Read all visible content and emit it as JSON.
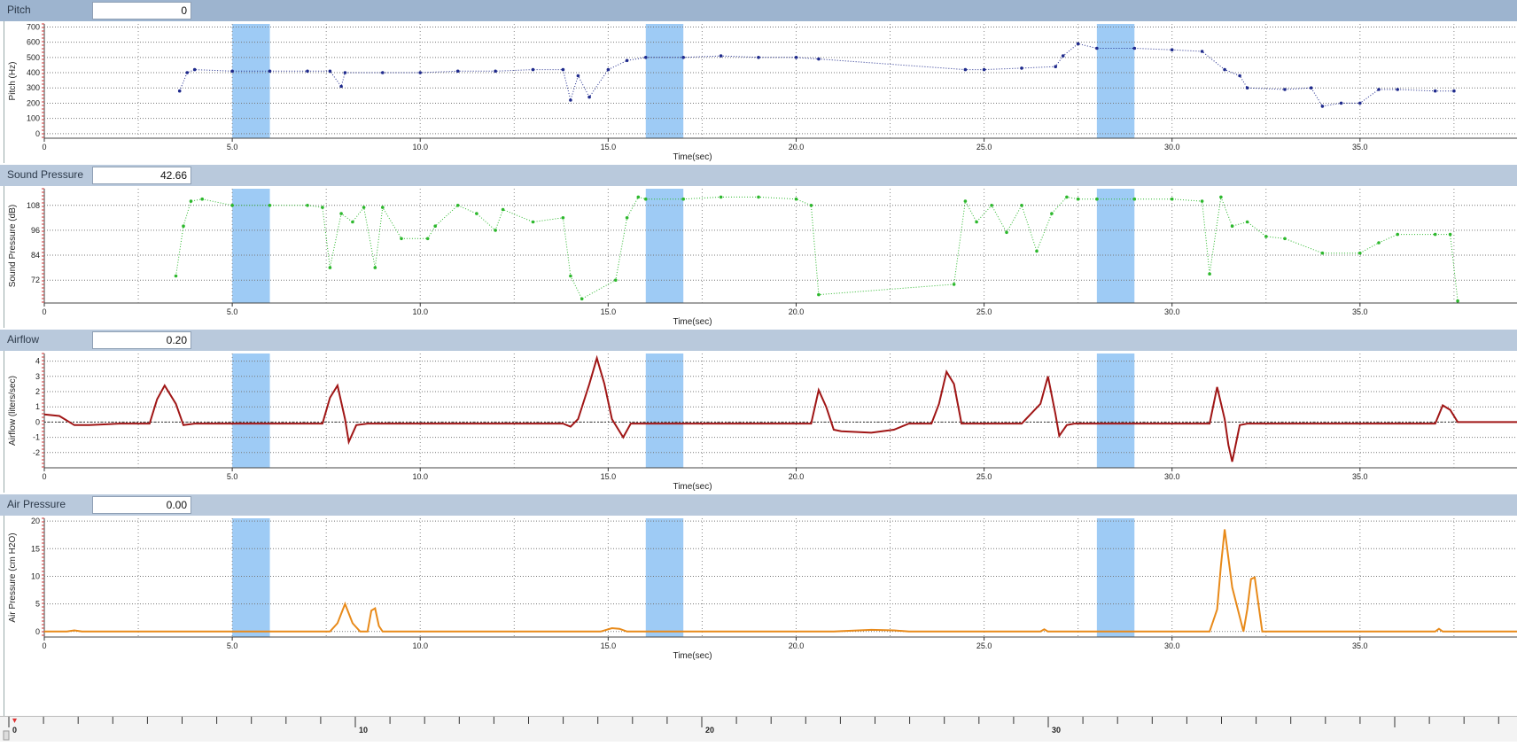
{
  "panels": [
    {
      "title": "Pitch",
      "value": "0"
    },
    {
      "title": "Sound Pressure",
      "value": "42.66"
    },
    {
      "title": "Airflow",
      "value": "0.20"
    },
    {
      "title": "Air Pressure",
      "value": "0.00"
    }
  ],
  "ruler": {
    "labels": [
      "0",
      "10",
      "20",
      "30"
    ]
  },
  "chart_data": [
    {
      "type": "scatter",
      "title": "Pitch",
      "xlabel": "Time(sec)",
      "ylabel": "Pitch (Hz)",
      "xlim": [
        0,
        39.2
      ],
      "ylim": [
        -30,
        720
      ],
      "xticks": [
        "0",
        "5.0",
        "10.0",
        "15.0",
        "20.0",
        "25.0",
        "30.0",
        "35.0"
      ],
      "yticks": [
        "0",
        "100",
        "200",
        "300",
        "400",
        "500",
        "600",
        "700"
      ],
      "highlight_bands": [
        [
          5.0,
          6.0
        ],
        [
          16.0,
          17.0
        ],
        [
          28.0,
          29.0
        ]
      ],
      "color": "#1f2a8c",
      "series": [
        {
          "x": [
            3.6,
            3.8,
            4.0,
            5.0,
            6.0,
            7.0,
            7.6,
            7.9,
            8.0,
            9.0,
            10.0,
            11.0,
            12.0,
            13.0,
            13.8,
            14.0,
            14.2,
            14.5,
            15.0,
            15.5,
            16.0,
            17.0,
            18.0,
            19.0,
            20.0,
            20.6,
            24.5,
            25.0,
            26.0,
            26.9,
            27.1,
            27.5,
            28.0,
            29.0,
            30.0,
            30.8,
            31.4,
            31.8,
            32.0,
            33.0,
            33.7,
            34.0,
            34.5,
            35.0,
            35.5,
            36.0,
            37.0,
            37.5
          ],
          "y": [
            280,
            400,
            420,
            410,
            410,
            410,
            410,
            310,
            400,
            400,
            400,
            410,
            410,
            420,
            420,
            220,
            380,
            240,
            420,
            480,
            500,
            500,
            510,
            500,
            500,
            490,
            420,
            420,
            430,
            440,
            510,
            590,
            560,
            560,
            550,
            540,
            420,
            380,
            300,
            290,
            300,
            180,
            200,
            200,
            290,
            290,
            280,
            280
          ]
        }
      ]
    },
    {
      "type": "scatter",
      "title": "Sound Pressure",
      "xlabel": "Time(sec)",
      "ylabel": "Sound Pressure (dB)",
      "xlim": [
        0,
        39.2
      ],
      "ylim": [
        61,
        116
      ],
      "xticks": [
        "0",
        "5.0",
        "10.0",
        "15.0",
        "20.0",
        "25.0",
        "30.0",
        "35.0"
      ],
      "yticks": [
        "72",
        "84",
        "96",
        "108"
      ],
      "highlight_bands": [
        [
          5.0,
          6.0
        ],
        [
          16.0,
          17.0
        ],
        [
          28.0,
          29.0
        ]
      ],
      "color": "#2db82d",
      "series": [
        {
          "x": [
            3.5,
            3.7,
            3.9,
            4.2,
            5.0,
            6.0,
            7.0,
            7.4,
            7.6,
            7.9,
            8.2,
            8.5,
            8.8,
            9.0,
            9.5,
            10.2,
            10.4,
            11.0,
            11.5,
            12.0,
            12.2,
            13.0,
            13.8,
            14.0,
            14.3,
            15.2,
            15.5,
            15.8,
            16.0,
            17.0,
            18.0,
            19.0,
            20.0,
            20.4,
            20.6,
            24.2,
            24.5,
            24.8,
            25.2,
            25.6,
            26.0,
            26.4,
            26.8,
            27.2,
            27.5,
            28.0,
            29.0,
            30.0,
            30.8,
            31.0,
            31.3,
            31.6,
            32.0,
            32.5,
            33.0,
            34.0,
            35.0,
            35.5,
            36.0,
            37.0,
            37.4,
            37.6
          ],
          "y": [
            74,
            98,
            110,
            111,
            108,
            108,
            108,
            107,
            78,
            104,
            100,
            107,
            78,
            107,
            92,
            92,
            98,
            108,
            104,
            96,
            106,
            100,
            102,
            74,
            63,
            72,
            102,
            112,
            111,
            111,
            112,
            112,
            111,
            108,
            65,
            70,
            110,
            100,
            108,
            95,
            108,
            86,
            104,
            112,
            111,
            111,
            111,
            111,
            110,
            75,
            112,
            98,
            100,
            93,
            92,
            85,
            85,
            90,
            94,
            94,
            94,
            62
          ]
        }
      ]
    },
    {
      "type": "line",
      "title": "Airflow",
      "xlabel": "Time(sec)",
      "ylabel": "Airflow (liters/sec)",
      "xlim": [
        0,
        39.2
      ],
      "ylim": [
        -3,
        4.5
      ],
      "xticks": [
        "0",
        "5.0",
        "10.0",
        "15.0",
        "20.0",
        "25.0",
        "30.0",
        "35.0"
      ],
      "yticks": [
        "-2",
        "-1",
        "0",
        "1",
        "2",
        "3",
        "4"
      ],
      "highlight_bands": [
        [
          5.0,
          6.0
        ],
        [
          16.0,
          17.0
        ],
        [
          28.0,
          29.0
        ]
      ],
      "color": "#a01616",
      "series": [
        {
          "x": [
            0,
            0.4,
            0.8,
            1.2,
            2.0,
            2.8,
            3.0,
            3.2,
            3.5,
            3.7,
            4.0,
            6.0,
            7.4,
            7.6,
            7.8,
            8.0,
            8.1,
            8.3,
            8.6,
            10.0,
            12.0,
            13.8,
            14.0,
            14.2,
            14.5,
            14.7,
            14.9,
            15.1,
            15.4,
            15.6,
            16.0,
            18.0,
            20.0,
            20.4,
            20.6,
            20.8,
            21.0,
            21.2,
            22.0,
            22.6,
            23.0,
            23.6,
            23.8,
            24.0,
            24.2,
            24.4,
            25.0,
            26.0,
            26.5,
            26.7,
            26.9,
            27.0,
            27.2,
            27.4,
            28.0,
            30.0,
            31.0,
            31.2,
            31.4,
            31.5,
            31.6,
            31.8,
            32.0,
            34.0,
            37.0,
            37.2,
            37.4,
            37.6,
            39.2
          ],
          "y": [
            0.5,
            0.4,
            -0.2,
            -0.2,
            -0.1,
            -0.1,
            1.5,
            2.4,
            1.2,
            -0.2,
            -0.1,
            -0.1,
            -0.1,
            1.6,
            2.4,
            0.2,
            -1.3,
            -0.2,
            -0.1,
            -0.1,
            -0.1,
            -0.1,
            -0.3,
            0.2,
            2.5,
            4.2,
            2.5,
            0.2,
            -1.0,
            -0.1,
            -0.1,
            -0.1,
            -0.1,
            -0.1,
            2.1,
            1.0,
            -0.5,
            -0.6,
            -0.7,
            -0.5,
            -0.1,
            -0.1,
            1.2,
            3.3,
            2.5,
            -0.1,
            -0.1,
            -0.1,
            1.2,
            3.0,
            0.5,
            -0.9,
            -0.2,
            -0.1,
            -0.1,
            -0.1,
            -0.1,
            2.3,
            0.2,
            -1.5,
            -2.6,
            -0.2,
            -0.1,
            -0.1,
            -0.1,
            1.1,
            0.8,
            0.0,
            0.0
          ]
        }
      ]
    },
    {
      "type": "line",
      "title": "Air Pressure",
      "xlabel": "Time(sec)",
      "ylabel": "Air Pressure (cm H2O)",
      "xlim": [
        0,
        39.2
      ],
      "ylim": [
        -1,
        20.5
      ],
      "xticks": [
        "0",
        "5.0",
        "10.0",
        "15.0",
        "20.0",
        "25.0",
        "30.0",
        "35.0"
      ],
      "yticks": [
        "0",
        "5",
        "10",
        "15",
        "20"
      ],
      "highlight_bands": [
        [
          5.0,
          6.0
        ],
        [
          16.0,
          17.0
        ],
        [
          28.0,
          29.0
        ]
      ],
      "color": "#e88a1a",
      "series": [
        {
          "x": [
            0,
            0.6,
            0.8,
            1.0,
            7.6,
            7.8,
            8.0,
            8.2,
            8.4,
            8.6,
            8.7,
            8.8,
            8.9,
            9.0,
            14.8,
            15.1,
            15.3,
            15.5,
            21.0,
            22.0,
            22.6,
            23.0,
            26.5,
            26.6,
            26.7,
            31.0,
            31.2,
            31.3,
            31.4,
            31.6,
            31.9,
            32.0,
            32.1,
            32.2,
            32.4,
            37.0,
            37.1,
            37.2,
            39.2
          ],
          "y": [
            0,
            0,
            0.2,
            0,
            0,
            1.5,
            5.0,
            1.5,
            0,
            0,
            3.8,
            4.2,
            1.0,
            0,
            0,
            0.6,
            0.5,
            0,
            0,
            0.3,
            0.2,
            0,
            0,
            0.4,
            0,
            0,
            4,
            12,
            18.5,
            8,
            0,
            4,
            9.5,
            9.8,
            0,
            0,
            0.5,
            0,
            0
          ]
        }
      ]
    }
  ]
}
